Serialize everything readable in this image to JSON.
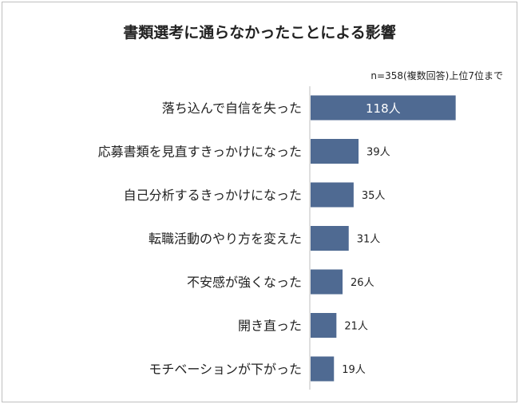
{
  "chart_data": {
    "type": "bar",
    "orientation": "horizontal",
    "title": "書類選考に通らなかったことによる影響",
    "note": "n=358(複数回答)上位7位まで",
    "categories": [
      "落ち込んで自信を失った",
      "応募書類を見直すきっかけになった",
      "自己分析するきっかけになった",
      "転職活動のやり方を変えた",
      "不安感が強くなった",
      "開き直った",
      "モチベーションが下がった"
    ],
    "values": [
      118,
      39,
      35,
      31,
      26,
      21,
      19
    ],
    "value_labels": [
      "118人",
      "39人",
      "35人",
      "31人",
      "26人",
      "21人",
      "19人"
    ],
    "bar_color": "#4f6a92",
    "xlim": [
      0,
      126
    ],
    "grid": false,
    "legend": "none"
  }
}
